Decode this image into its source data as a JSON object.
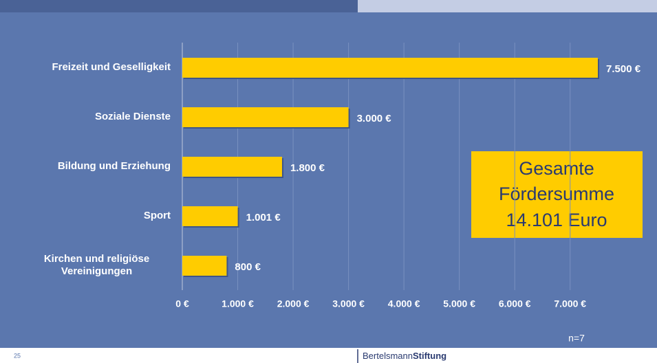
{
  "chart_data": {
    "type": "bar",
    "orientation": "horizontal",
    "categories": [
      "Freizeit und Geselligkeit",
      "Soziale Dienste",
      "Bildung und Erziehung",
      "Sport",
      "Kirchen und religiöse Vereinigungen"
    ],
    "values": [
      7500,
      3000,
      1800,
      1001,
      800
    ],
    "value_labels": [
      "7.500 €",
      "3.000 €",
      "1.800 €",
      "1.001 €",
      "800 €"
    ],
    "color": "#ffcc00",
    "xlim": [
      0,
      7500
    ],
    "xticks": [
      {
        "value": 0,
        "label": "0 €"
      },
      {
        "value": 1000,
        "label": "1.000 €"
      },
      {
        "value": 2000,
        "label": "2.000 €"
      },
      {
        "value": 3000,
        "label": "3.000 €"
      },
      {
        "value": 4000,
        "label": "4.000 €"
      },
      {
        "value": 5000,
        "label": "5.000 €"
      },
      {
        "value": 6000,
        "label": "6.000 €"
      },
      {
        "value": 7000,
        "label": "7.000 €"
      }
    ],
    "grid": true,
    "annotations": [
      "Gesamte",
      "Fördersumme",
      "14.101 Euro"
    ],
    "note": "n=7"
  },
  "footer": {
    "page": "25",
    "brand_light": "Bertelsmann",
    "brand_bold": "Stiftung"
  }
}
